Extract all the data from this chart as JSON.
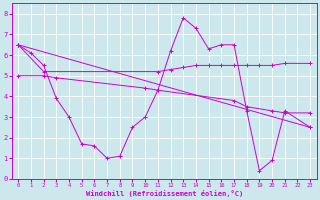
{
  "xlabel": "Windchill (Refroidissement éolien,°C)",
  "xlim": [
    -0.5,
    23.5
  ],
  "ylim": [
    0,
    8.5
  ],
  "xticks": [
    0,
    1,
    2,
    3,
    4,
    5,
    6,
    7,
    8,
    9,
    10,
    11,
    12,
    13,
    14,
    15,
    16,
    17,
    18,
    19,
    20,
    21,
    22,
    23
  ],
  "yticks": [
    0,
    1,
    2,
    3,
    4,
    5,
    6,
    7,
    8
  ],
  "bg_color": "#cce8ec",
  "line_color": "#cc00cc",
  "grid_color": "#ffffff",
  "line1_x": [
    0,
    1,
    2,
    3,
    4,
    5,
    6,
    7,
    8,
    9,
    10,
    11,
    12,
    13,
    14,
    15,
    16,
    17,
    18,
    19,
    20,
    21,
    23
  ],
  "line1_y": [
    6.5,
    6.1,
    5.5,
    3.9,
    3.0,
    1.7,
    1.6,
    1.0,
    1.1,
    2.5,
    3.0,
    4.3,
    6.2,
    7.8,
    7.3,
    6.3,
    6.5,
    6.5,
    3.3,
    0.4,
    0.9,
    3.3,
    2.5
  ],
  "line2_x": [
    0,
    2,
    11,
    12,
    13,
    14,
    15,
    16,
    17,
    18,
    19,
    20,
    21,
    23
  ],
  "line2_y": [
    6.5,
    5.2,
    5.2,
    5.3,
    5.4,
    5.5,
    5.5,
    5.5,
    5.5,
    5.5,
    5.5,
    5.5,
    5.6,
    5.6
  ],
  "line3_x": [
    0,
    23
  ],
  "line3_y": [
    6.5,
    2.5
  ],
  "line4_x": [
    0,
    2,
    3,
    10,
    11,
    17,
    18,
    20,
    21,
    23
  ],
  "line4_y": [
    5.0,
    5.0,
    4.9,
    4.4,
    4.3,
    3.8,
    3.5,
    3.3,
    3.2,
    3.2
  ]
}
